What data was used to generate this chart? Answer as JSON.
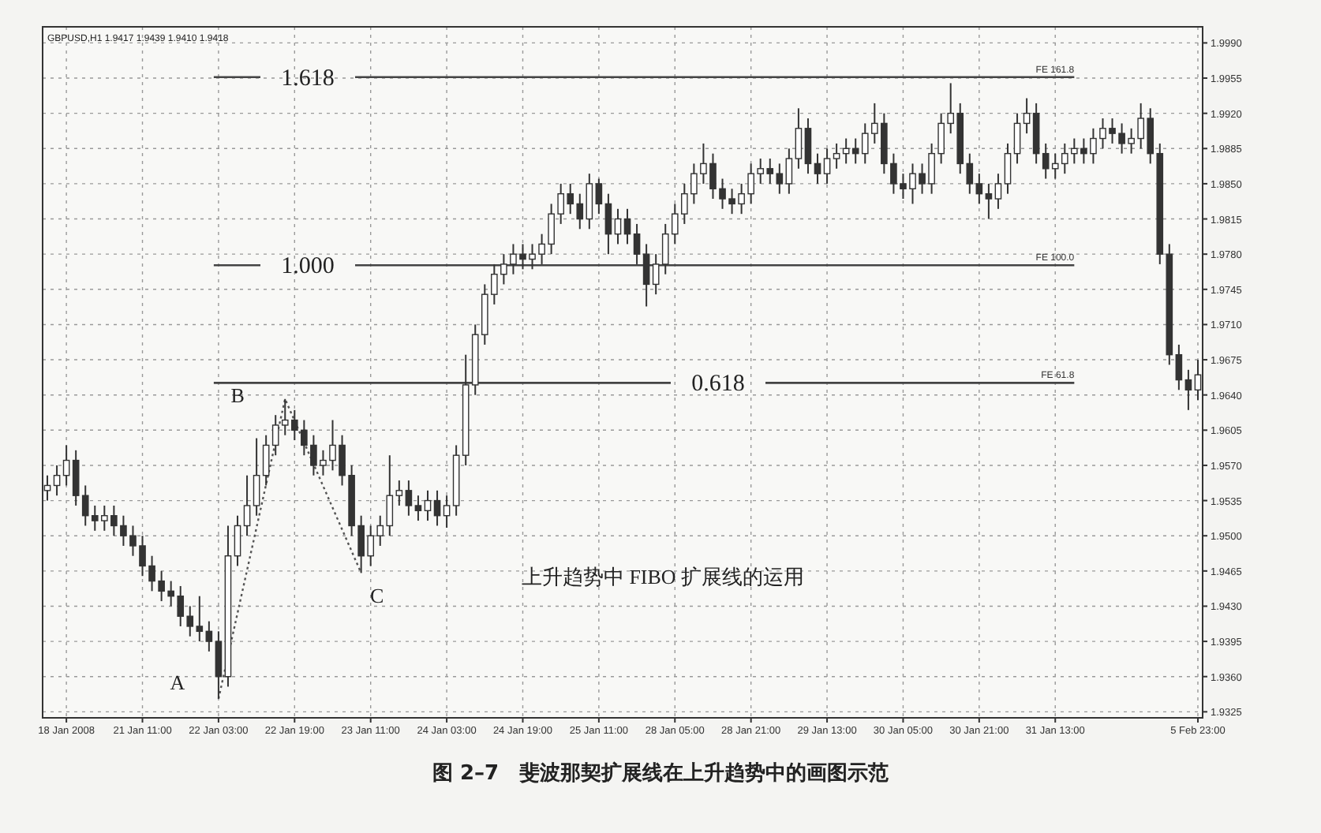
{
  "chart_data": {
    "type": "candlestick",
    "title": "图 2–7　斐波那契扩展线在上升趋势中的画图示范",
    "categories": [
      null,
      null,
      "18 Jan 2008",
      null,
      null,
      null,
      null,
      null,
      null,
      null,
      "21 Jan 11:00",
      null,
      null,
      null,
      null,
      null,
      null,
      null,
      "22 Jan 03:00",
      null,
      null,
      null,
      null,
      null,
      null,
      null,
      "22 Jan 19:00",
      null,
      null,
      null,
      null,
      null,
      null,
      null,
      "23 Jan 11:00",
      null,
      null,
      null,
      null,
      null,
      null,
      null,
      "24 Jan 03:00",
      null,
      null,
      null,
      null,
      null,
      null,
      null,
      "24 Jan 19:00",
      null,
      null,
      null,
      null,
      null,
      null,
      null,
      "25 Jan 11:00",
      null,
      null,
      null,
      null,
      null,
      null,
      null,
      "28 Jan 05:00",
      null,
      null,
      null,
      null,
      null,
      null,
      null,
      "28 Jan 21:00",
      null,
      null,
      null,
      null,
      null,
      null,
      null,
      "29 Jan 13:00",
      null,
      null,
      null,
      null,
      null,
      null,
      null,
      "30 Jan 05:00",
      null,
      null,
      null,
      null,
      null,
      null,
      null,
      "30 Jan 21:00",
      null,
      null,
      null,
      null,
      null,
      null,
      null,
      "31 Jan 13:00",
      null,
      null,
      null,
      null,
      null,
      null,
      null,
      null,
      null,
      null,
      null,
      null,
      null,
      null,
      "5 Feb 23:00"
    ],
    "series": [
      {
        "color": "#333333",
        "ohlc": [
          [
            1.9545,
            1.956,
            1.9535,
            1.955
          ],
          [
            1.955,
            1.957,
            1.954,
            1.956
          ],
          [
            1.956,
            1.959,
            1.955,
            1.9575
          ],
          [
            1.9575,
            1.9585,
            1.953,
            1.954
          ],
          [
            1.954,
            1.955,
            1.951,
            1.952
          ],
          [
            1.952,
            1.953,
            1.9505,
            1.9515
          ],
          [
            1.9515,
            1.953,
            1.9505,
            1.952
          ],
          [
            1.952,
            1.953,
            1.95,
            1.951
          ],
          [
            1.951,
            1.952,
            1.949,
            1.95
          ],
          [
            1.95,
            1.951,
            1.948,
            1.949
          ],
          [
            1.949,
            1.95,
            1.946,
            1.947
          ],
          [
            1.947,
            1.948,
            1.9445,
            1.9455
          ],
          [
            1.9455,
            1.9465,
            1.9435,
            1.9445
          ],
          [
            1.9445,
            1.9455,
            1.943,
            1.944
          ],
          [
            1.944,
            1.945,
            1.941,
            1.942
          ],
          [
            1.942,
            1.943,
            1.94,
            1.941
          ],
          [
            1.941,
            1.944,
            1.9395,
            1.9405
          ],
          [
            1.9405,
            1.9415,
            1.9385,
            1.9395
          ],
          [
            1.9395,
            1.9405,
            1.9338,
            1.936
          ],
          [
            1.936,
            1.951,
            1.935,
            1.948
          ],
          [
            1.948,
            1.952,
            1.947,
            1.951
          ],
          [
            1.951,
            1.956,
            1.95,
            1.953
          ],
          [
            1.953,
            1.9597,
            1.952,
            1.956
          ],
          [
            1.956,
            1.96,
            1.955,
            1.959
          ],
          [
            1.959,
            1.962,
            1.958,
            1.961
          ],
          [
            1.961,
            1.9636,
            1.96,
            1.9615
          ],
          [
            1.9615,
            1.9625,
            1.9595,
            1.9605
          ],
          [
            1.9605,
            1.9615,
            1.958,
            1.959
          ],
          [
            1.959,
            1.96,
            1.956,
            1.957
          ],
          [
            1.957,
            1.9585,
            1.956,
            1.9575
          ],
          [
            1.9575,
            1.9615,
            1.9565,
            1.959
          ],
          [
            1.959,
            1.96,
            1.955,
            1.956
          ],
          [
            1.956,
            1.957,
            1.95,
            1.951
          ],
          [
            1.951,
            1.952,
            1.9463,
            1.948
          ],
          [
            1.948,
            1.951,
            1.947,
            1.95
          ],
          [
            1.95,
            1.952,
            1.949,
            1.951
          ],
          [
            1.951,
            1.958,
            1.95,
            1.954
          ],
          [
            1.954,
            1.9555,
            1.953,
            1.9545
          ],
          [
            1.9545,
            1.9555,
            1.952,
            1.953
          ],
          [
            1.953,
            1.954,
            1.9515,
            1.9525
          ],
          [
            1.9525,
            1.9545,
            1.9515,
            1.9535
          ],
          [
            1.9535,
            1.9545,
            1.951,
            1.952
          ],
          [
            1.952,
            1.954,
            1.9508,
            1.953
          ],
          [
            1.953,
            1.959,
            1.952,
            1.958
          ],
          [
            1.958,
            1.968,
            1.957,
            1.965
          ],
          [
            1.965,
            1.971,
            1.964,
            1.97
          ],
          [
            1.97,
            1.975,
            1.969,
            1.974
          ],
          [
            1.974,
            1.977,
            1.973,
            1.976
          ],
          [
            1.976,
            1.978,
            1.975,
            1.977
          ],
          [
            1.977,
            1.979,
            1.976,
            1.978
          ],
          [
            1.978,
            1.979,
            1.9765,
            1.9775
          ],
          [
            1.9775,
            1.979,
            1.9765,
            1.978
          ],
          [
            1.978,
            1.98,
            1.977,
            1.979
          ],
          [
            1.979,
            1.983,
            1.978,
            1.982
          ],
          [
            1.982,
            1.985,
            1.981,
            1.984
          ],
          [
            1.984,
            1.985,
            1.982,
            1.983
          ],
          [
            1.983,
            1.984,
            1.9805,
            1.9815
          ],
          [
            1.9815,
            1.986,
            1.9805,
            1.985
          ],
          [
            1.985,
            1.9855,
            1.982,
            1.983
          ],
          [
            1.983,
            1.984,
            1.978,
            1.98
          ],
          [
            1.98,
            1.9825,
            1.979,
            1.9815
          ],
          [
            1.9815,
            1.9825,
            1.979,
            1.98
          ],
          [
            1.98,
            1.981,
            1.977,
            1.978
          ],
          [
            1.978,
            1.979,
            1.9728,
            1.975
          ],
          [
            1.975,
            1.978,
            1.974,
            1.977
          ],
          [
            1.977,
            1.981,
            1.976,
            1.98
          ],
          [
            1.98,
            1.983,
            1.979,
            1.982
          ],
          [
            1.982,
            1.985,
            1.981,
            1.984
          ],
          [
            1.984,
            1.987,
            1.983,
            1.986
          ],
          [
            1.986,
            1.989,
            1.985,
            1.987
          ],
          [
            1.987,
            1.988,
            1.9835,
            1.9845
          ],
          [
            1.9845,
            1.9855,
            1.9825,
            1.9835
          ],
          [
            1.9835,
            1.9845,
            1.982,
            1.983
          ],
          [
            1.983,
            1.985,
            1.982,
            1.984
          ],
          [
            1.984,
            1.987,
            1.983,
            1.986
          ],
          [
            1.986,
            1.9875,
            1.985,
            1.9865
          ],
          [
            1.9865,
            1.9875,
            1.985,
            1.986
          ],
          [
            1.986,
            1.987,
            1.984,
            1.985
          ],
          [
            1.985,
            1.9885,
            1.984,
            1.9875
          ],
          [
            1.9875,
            1.9925,
            1.9865,
            1.9905
          ],
          [
            1.9905,
            1.9915,
            1.986,
            1.987
          ],
          [
            1.987,
            1.988,
            1.985,
            1.986
          ],
          [
            1.986,
            1.9885,
            1.985,
            1.9875
          ],
          [
            1.9875,
            1.989,
            1.9865,
            1.988
          ],
          [
            1.988,
            1.9895,
            1.987,
            1.9885
          ],
          [
            1.9885,
            1.9895,
            1.987,
            1.988
          ],
          [
            1.988,
            1.991,
            1.987,
            1.99
          ],
          [
            1.99,
            1.993,
            1.989,
            1.991
          ],
          [
            1.991,
            1.992,
            1.986,
            1.987
          ],
          [
            1.987,
            1.988,
            1.984,
            1.985
          ],
          [
            1.985,
            1.986,
            1.9835,
            1.9845
          ],
          [
            1.9845,
            1.987,
            1.983,
            1.986
          ],
          [
            1.986,
            1.987,
            1.984,
            1.985
          ],
          [
            1.985,
            1.989,
            1.984,
            1.988
          ],
          [
            1.988,
            1.992,
            1.987,
            1.991
          ],
          [
            1.991,
            1.995,
            1.99,
            1.992
          ],
          [
            1.992,
            1.993,
            1.986,
            1.987
          ],
          [
            1.987,
            1.988,
            1.984,
            1.985
          ],
          [
            1.985,
            1.986,
            1.983,
            1.984
          ],
          [
            1.984,
            1.985,
            1.9815,
            1.9835
          ],
          [
            1.9835,
            1.986,
            1.9825,
            1.985
          ],
          [
            1.985,
            1.989,
            1.984,
            1.988
          ],
          [
            1.988,
            1.992,
            1.987,
            1.991
          ],
          [
            1.991,
            1.9935,
            1.99,
            1.992
          ],
          [
            1.992,
            1.993,
            1.987,
            1.988
          ],
          [
            1.988,
            1.989,
            1.9855,
            1.9865
          ],
          [
            1.9865,
            1.988,
            1.9855,
            1.987
          ],
          [
            1.987,
            1.989,
            1.986,
            1.988
          ],
          [
            1.988,
            1.9895,
            1.987,
            1.9885
          ],
          [
            1.9885,
            1.9895,
            1.987,
            1.988
          ],
          [
            1.988,
            1.9905,
            1.987,
            1.9895
          ],
          [
            1.9895,
            1.9915,
            1.9885,
            1.9905
          ],
          [
            1.9905,
            1.9915,
            1.989,
            1.99
          ],
          [
            1.99,
            1.991,
            1.988,
            1.989
          ],
          [
            1.989,
            1.9905,
            1.988,
            1.9895
          ],
          [
            1.9895,
            1.993,
            1.9885,
            1.9915
          ],
          [
            1.9915,
            1.9925,
            1.987,
            1.988
          ],
          [
            1.988,
            1.989,
            1.977,
            1.978
          ],
          [
            1.978,
            1.979,
            1.967,
            1.968
          ],
          [
            1.968,
            1.969,
            1.9645,
            1.9655
          ],
          [
            1.9655,
            1.9665,
            1.9625,
            1.9645
          ],
          [
            1.9645,
            1.9675,
            1.9635,
            1.966
          ]
        ]
      },
      {
        "type": "line",
        "color": "#555555",
        "line_style": "dotted",
        "values": [
          null,
          null,
          null,
          null,
          null,
          null,
          null,
          null,
          null,
          null,
          null,
          null,
          null,
          null,
          null,
          null,
          null,
          null,
          1.9338,
          null,
          null,
          null,
          null,
          null,
          null,
          1.9636,
          null,
          null,
          null,
          null,
          null,
          null,
          null,
          1.9463,
          null,
          null,
          null,
          null,
          null,
          null,
          null,
          null,
          null,
          null,
          null,
          null,
          null,
          null,
          null,
          null,
          null,
          null,
          null,
          null,
          null,
          null,
          null,
          null,
          null,
          null,
          null,
          null,
          null,
          null,
          null,
          null,
          null,
          null,
          null,
          null,
          null,
          null,
          null,
          null,
          null,
          null,
          null,
          null,
          null,
          null,
          null,
          null,
          null,
          null,
          null,
          null,
          null,
          null,
          null,
          null,
          null,
          null,
          null,
          null,
          null,
          null,
          null,
          null,
          null,
          null,
          null,
          null,
          null,
          null,
          null,
          null,
          null,
          null,
          null,
          null,
          null,
          null,
          null,
          null,
          null,
          null,
          null,
          null,
          null,
          null,
          null,
          null
        ]
      }
    ],
    "ylim": [
      1.9319,
      2.0006
    ],
    "yticks": [
      1.9325,
      {
        "value": 1.936,
        "label": "1.9360"
      },
      1.9395,
      {
        "value": 1.943,
        "label": "1.9430"
      },
      1.9465,
      {
        "value": 1.95,
        "label": "1.9500"
      },
      1.9535,
      {
        "value": 1.957,
        "label": "1.9570"
      },
      1.9605,
      {
        "value": 1.964,
        "label": "1.9640"
      },
      1.9675,
      {
        "value": 1.971,
        "label": "1.9710"
      },
      1.9745,
      {
        "value": 1.978,
        "label": "1.9780"
      },
      1.9815,
      {
        "value": 1.985,
        "label": "1.9850"
      },
      1.9885,
      {
        "value": 1.992,
        "label": "1.9920"
      },
      1.9955,
      {
        "value": 1.999,
        "label": "1.9990"
      }
    ],
    "grid": true,
    "ref_lines": [
      {
        "axis": "y",
        "value": 1.9956,
        "label": "FE 161.8",
        "color": "#444444"
      },
      {
        "axis": "y",
        "value": 1.9769,
        "label": "FE 100.0",
        "color": "#444444"
      },
      {
        "axis": "y",
        "value": 1.9652,
        "label": "FE 61.8",
        "color": "#444444"
      }
    ],
    "annotations": [
      "GBPUSD,H1  1.9417 1.9439 1.9410 1.9418",
      "上升趋势中 FIBO 扩展线的运用",
      "1.618",
      "1.000",
      "0.618",
      "A",
      "B",
      "C"
    ]
  }
}
